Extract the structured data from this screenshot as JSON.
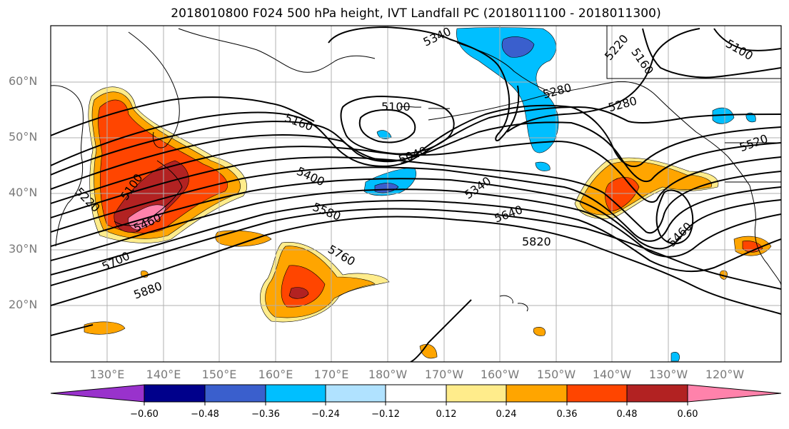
{
  "title": "2018010800 F024 500 hPa height, IVT Landfall PC (2018011100 - 2018011300)",
  "lat_labels": [
    "60°N",
    "50°N",
    "40°N",
    "30°N",
    "20°N"
  ],
  "lon_labels": [
    "130°E",
    "140°E",
    "150°E",
    "160°E",
    "170°E",
    "180°W",
    "170°W",
    "160°W",
    "150°W",
    "140°W",
    "130°W",
    "120°W"
  ],
  "contour_labels": [
    "5340",
    "5220",
    "5160",
    "5100",
    "5280",
    "5100",
    "5160",
    "5040",
    "5280",
    "5520",
    "5400",
    "5340",
    "5220",
    "5100",
    "5460",
    "5640",
    "5580",
    "5700",
    "5760",
    "5820",
    "5880",
    "5460"
  ],
  "colorbar": {
    "colors": [
      "#9932cc",
      "#00008b",
      "#3a5fcd",
      "#00bfff",
      "#b0e2ff",
      "#ffffff",
      "#ffec8b",
      "#ffa500",
      "#ff4500",
      "#b22222",
      "#ff82ab"
    ],
    "tick_labels": [
      "−0.60",
      "−0.48",
      "−0.36",
      "−0.24",
      "−0.12",
      "0.12",
      "0.24",
      "0.36",
      "0.48",
      "0.60"
    ]
  }
}
